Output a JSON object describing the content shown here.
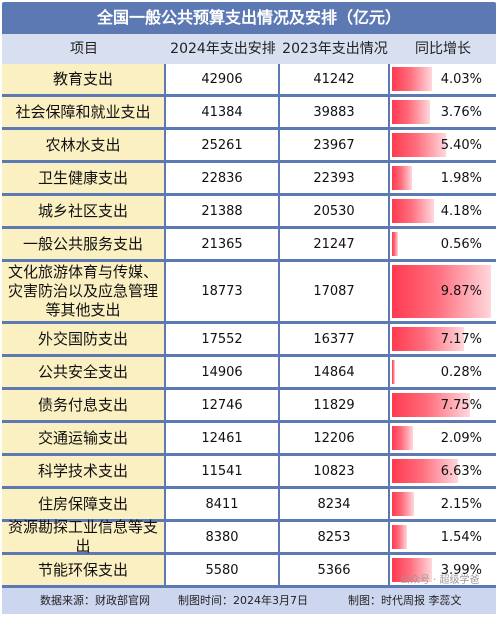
{
  "title": "全国一般公共预算支出情况及安排（亿元）",
  "headers": {
    "item": "项目",
    "y2024": "2024年支出安排",
    "y2023": "2023年支出情况",
    "growth": "同比增长"
  },
  "rows": [
    {
      "name": "教育支出",
      "v2024": "42906",
      "v2023": "41242",
      "growth": "4.03%",
      "g": 4.03
    },
    {
      "name": "社会保障和就业支出",
      "v2024": "41384",
      "v2023": "39883",
      "growth": "3.76%",
      "g": 3.76
    },
    {
      "name": "农林水支出",
      "v2024": "25261",
      "v2023": "23967",
      "growth": "5.40%",
      "g": 5.4
    },
    {
      "name": "卫生健康支出",
      "v2024": "22836",
      "v2023": "22393",
      "growth": "1.98%",
      "g": 1.98
    },
    {
      "name": "城乡社区支出",
      "v2024": "21388",
      "v2023": "20530",
      "growth": "4.18%",
      "g": 4.18
    },
    {
      "name": "一般公共服务支出",
      "v2024": "21365",
      "v2023": "21247",
      "growth": "0.56%",
      "g": 0.56
    },
    {
      "name": "文化旅游体育与传媒、灾害防治以及应急管理等其他支出",
      "v2024": "18773",
      "v2023": "17087",
      "growth": "9.87%",
      "g": 9.87
    },
    {
      "name": "外交国防支出",
      "v2024": "17552",
      "v2023": "16377",
      "growth": "7.17%",
      "g": 7.17
    },
    {
      "name": "公共安全支出",
      "v2024": "14906",
      "v2023": "14864",
      "growth": "0.28%",
      "g": 0.28
    },
    {
      "name": "债务付息支出",
      "v2024": "12746",
      "v2023": "11829",
      "growth": "7.75%",
      "g": 7.75
    },
    {
      "name": "交通运输支出",
      "v2024": "12461",
      "v2023": "12206",
      "growth": "2.09%",
      "g": 2.09
    },
    {
      "name": "科学技术支出",
      "v2024": "11541",
      "v2023": "10823",
      "growth": "6.63%",
      "g": 6.63
    },
    {
      "name": "住房保障支出",
      "v2024": "8411",
      "v2023": "8234",
      "growth": "2.15%",
      "g": 2.15
    },
    {
      "name": "资源勘探工业信息等支出",
      "v2024": "8380",
      "v2023": "8253",
      "growth": "1.54%",
      "g": 1.54
    },
    {
      "name": "节能环保支出",
      "v2024": "5580",
      "v2023": "5366",
      "growth": "3.99%",
      "g": 3.99
    }
  ],
  "footer": {
    "source": "数据来源：财政部官网",
    "time": "制图时间：2024年3月7日",
    "maker": "制图：时代周报 李蕊文",
    "watermark": "公众号 · 超级学爸"
  },
  "colors": {
    "frame": "#5d79b4",
    "header_bg": "#d7dff0",
    "name_bg": "#fbf0c2",
    "bar": "#ff3a50"
  }
}
